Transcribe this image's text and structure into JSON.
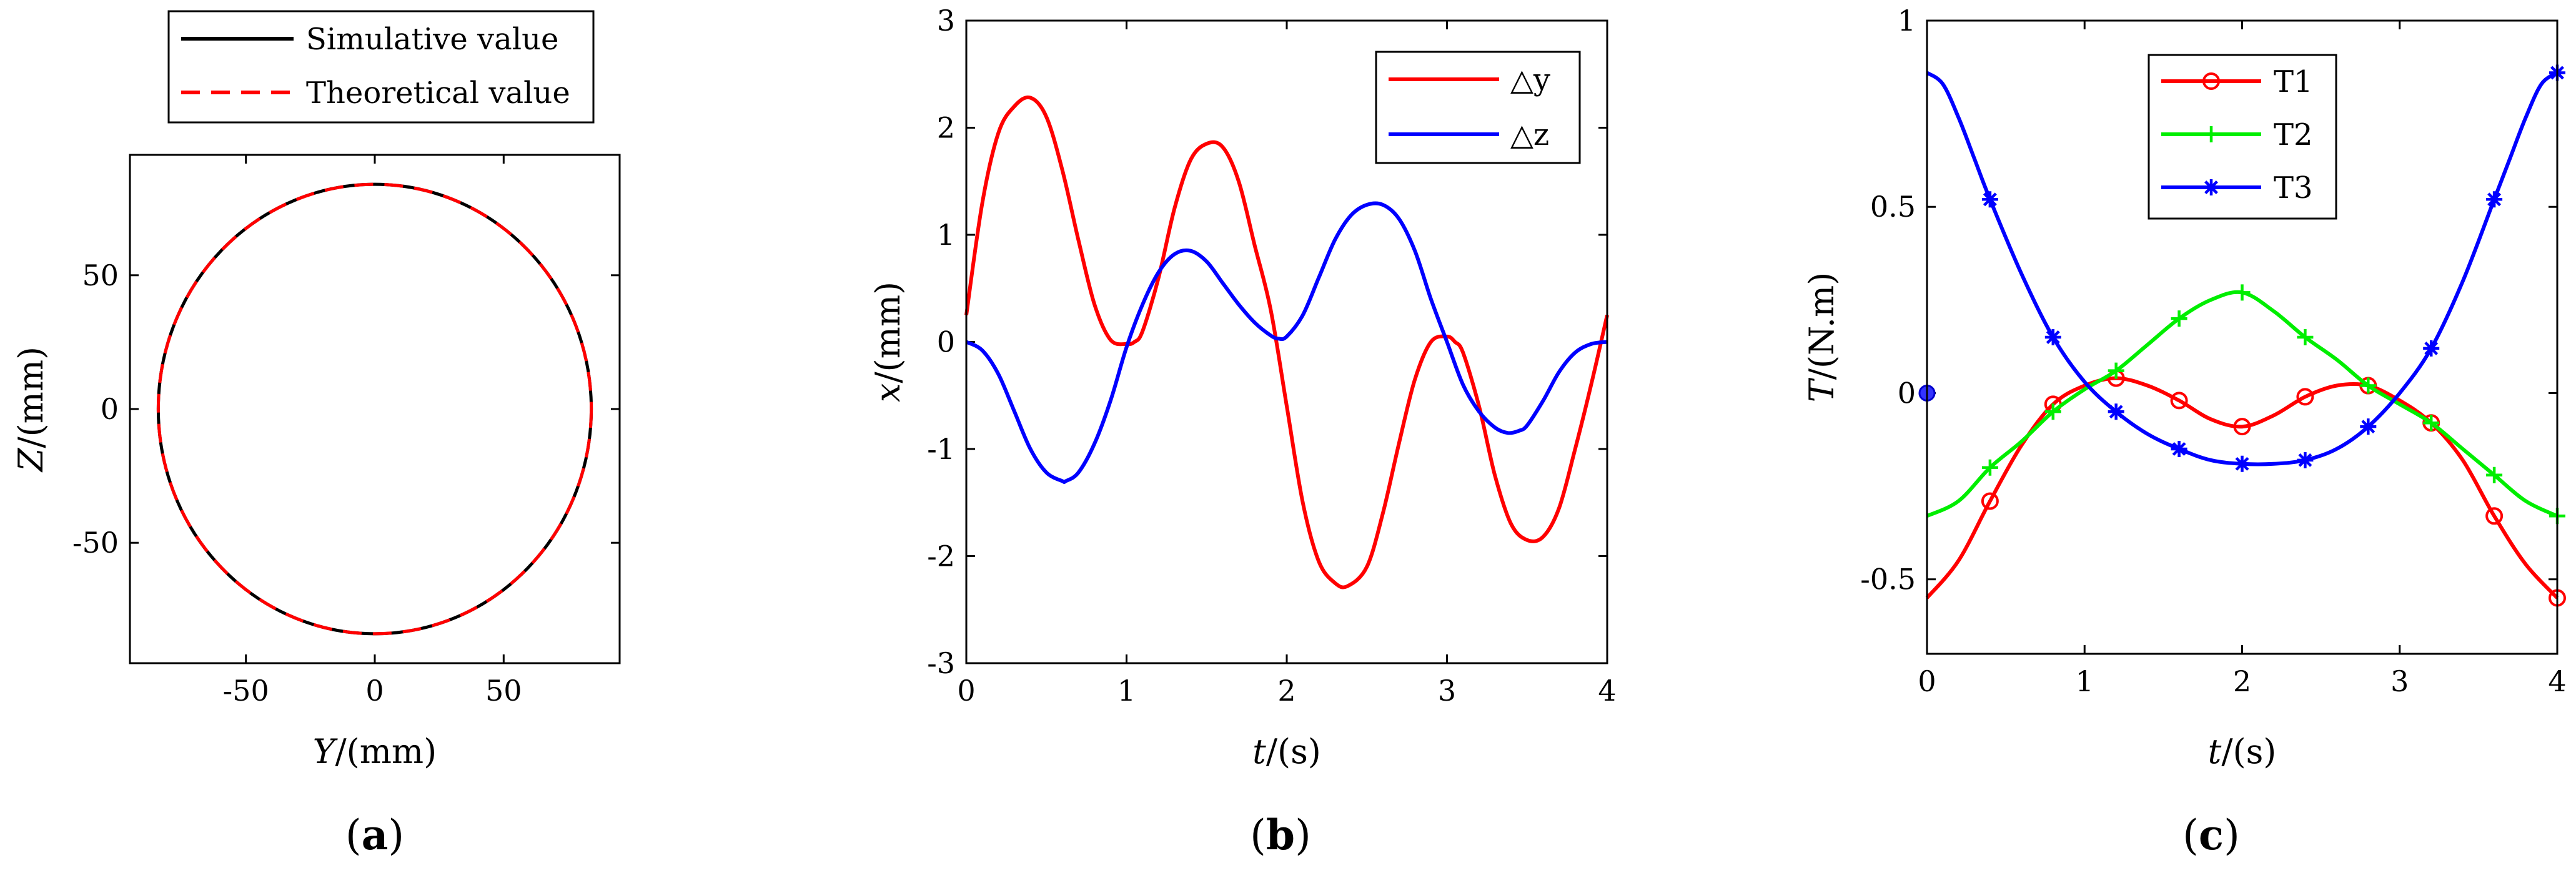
{
  "chart_data": [
    {
      "type": "line",
      "panel_label": "a",
      "xlabel_italic": "Y",
      "xlabel_rest": "/(mm)",
      "ylabel_italic": "Z",
      "ylabel_rest": "/(mm)",
      "xlim": [
        -95,
        95
      ],
      "ylim": [
        -95,
        95
      ],
      "xticks": [
        -50,
        0,
        50
      ],
      "yticks": [
        -50,
        0,
        50
      ],
      "legend_position": "top",
      "series": [
        {
          "name": "Simulative value",
          "color": "#000000",
          "dash": "solid",
          "shape": "circle",
          "radius": 84
        },
        {
          "name": "Theoretical value",
          "color": "#ff0000",
          "dash": "dashed",
          "shape": "circle",
          "radius": 84
        }
      ]
    },
    {
      "type": "line",
      "panel_label": "b",
      "xlabel_italic": "t",
      "xlabel_rest": "/(s)",
      "ylabel_italic": "x",
      "ylabel_rest": "/(mm)",
      "xlim": [
        0,
        4
      ],
      "ylim": [
        -3,
        3
      ],
      "xticks": [
        0,
        1,
        2,
        3,
        4
      ],
      "yticks": [
        -3,
        -2,
        -1,
        0,
        1,
        2,
        3
      ],
      "legend_position": "top-right",
      "series": [
        {
          "name": "△y",
          "color": "#ff0000",
          "x": [
            0,
            0.1,
            0.2,
            0.3,
            0.4,
            0.5,
            0.6,
            0.7,
            0.8,
            0.9,
            1.0,
            1.05,
            1.1,
            1.2,
            1.3,
            1.4,
            1.5,
            1.6,
            1.7,
            1.8,
            1.9,
            2.0,
            2.1,
            2.2,
            2.3,
            2.38,
            2.5,
            2.6,
            2.7,
            2.8,
            2.9,
            3.0,
            3.05,
            3.1,
            3.2,
            3.3,
            3.4,
            3.5,
            3.6,
            3.7,
            3.8,
            3.9,
            4.0
          ],
          "y": [
            0.25,
            1.3,
            1.95,
            2.2,
            2.28,
            2.1,
            1.6,
            0.95,
            0.35,
            0.02,
            -0.02,
            0.0,
            0.1,
            0.6,
            1.25,
            1.7,
            1.85,
            1.82,
            1.5,
            0.9,
            0.3,
            -0.6,
            -1.5,
            -2.05,
            -2.25,
            -2.28,
            -2.1,
            -1.6,
            -0.95,
            -0.35,
            0.0,
            0.05,
            0.0,
            -0.1,
            -0.6,
            -1.25,
            -1.7,
            -1.85,
            -1.82,
            -1.55,
            -1.0,
            -0.4,
            0.25
          ]
        },
        {
          "name": "△z",
          "color": "#0000ff",
          "x": [
            0,
            0.1,
            0.2,
            0.3,
            0.4,
            0.5,
            0.6,
            0.62,
            0.7,
            0.8,
            0.9,
            1.0,
            1.1,
            1.2,
            1.3,
            1.4,
            1.5,
            1.6,
            1.7,
            1.8,
            1.9,
            1.95,
            2.0,
            2.1,
            2.2,
            2.3,
            2.4,
            2.5,
            2.6,
            2.7,
            2.8,
            2.9,
            3.0,
            3.1,
            3.2,
            3.3,
            3.38,
            3.45,
            3.5,
            3.6,
            3.7,
            3.8,
            3.9,
            4.0
          ],
          "y": [
            0.0,
            -0.08,
            -0.3,
            -0.65,
            -1.0,
            -1.22,
            -1.3,
            -1.3,
            -1.22,
            -0.95,
            -0.55,
            -0.05,
            0.35,
            0.65,
            0.82,
            0.85,
            0.75,
            0.55,
            0.35,
            0.18,
            0.06,
            0.03,
            0.05,
            0.25,
            0.6,
            0.95,
            1.18,
            1.28,
            1.28,
            1.15,
            0.85,
            0.4,
            0.0,
            -0.4,
            -0.65,
            -0.8,
            -0.85,
            -0.83,
            -0.78,
            -0.55,
            -0.28,
            -0.1,
            -0.02,
            0.0
          ]
        }
      ]
    },
    {
      "type": "line",
      "panel_label": "c",
      "xlabel_italic": "t",
      "xlabel_rest": "/(s)",
      "ylabel_italic": "T",
      "ylabel_rest": "/(N.m)",
      "xlim": [
        0,
        4
      ],
      "ylim": [
        -0.7,
        1
      ],
      "xticks": [
        0,
        1,
        2,
        3,
        4
      ],
      "yticks": [
        -0.5,
        0,
        0.5,
        1
      ],
      "legend_position": "top-center",
      "series": [
        {
          "name": "T1",
          "color": "#ff0000",
          "marker": "circle",
          "x": [
            0,
            0.2,
            0.4,
            0.6,
            0.8,
            1.0,
            1.2,
            1.4,
            1.6,
            1.8,
            2.0,
            2.2,
            2.4,
            2.6,
            2.8,
            3.0,
            3.2,
            3.4,
            3.6,
            3.8,
            4.0
          ],
          "y": [
            -0.55,
            -0.45,
            -0.29,
            -0.14,
            -0.03,
            0.02,
            0.04,
            0.02,
            -0.02,
            -0.07,
            -0.09,
            -0.06,
            -0.01,
            0.02,
            0.02,
            -0.02,
            -0.08,
            -0.18,
            -0.33,
            -0.46,
            -0.55
          ],
          "markers_x": [
            0.4,
            0.8,
            1.2,
            1.6,
            2.0,
            2.4,
            2.8,
            3.2,
            3.6,
            4.0
          ],
          "markers_y": [
            -0.29,
            -0.03,
            0.04,
            -0.02,
            -0.09,
            -0.01,
            0.02,
            -0.08,
            -0.33,
            -0.55
          ]
        },
        {
          "name": "T2",
          "color": "#00ee00",
          "marker": "plus",
          "x": [
            0,
            0.2,
            0.4,
            0.6,
            0.8,
            1.0,
            1.2,
            1.4,
            1.6,
            1.8,
            2.0,
            2.2,
            2.4,
            2.6,
            2.8,
            3.0,
            3.2,
            3.4,
            3.6,
            3.8,
            4.0
          ],
          "y": [
            -0.33,
            -0.29,
            -0.2,
            -0.13,
            -0.05,
            0.01,
            0.06,
            0.13,
            0.2,
            0.25,
            0.27,
            0.22,
            0.15,
            0.09,
            0.02,
            -0.03,
            -0.08,
            -0.15,
            -0.22,
            -0.29,
            -0.33
          ],
          "markers_x": [
            0.4,
            0.8,
            1.2,
            1.6,
            2.0,
            2.4,
            2.8,
            3.2,
            3.6,
            4.0
          ],
          "markers_y": [
            -0.2,
            -0.05,
            0.06,
            0.2,
            0.27,
            0.15,
            0.02,
            -0.08,
            -0.22,
            -0.33
          ]
        },
        {
          "name": "T3",
          "color": "#0000ff",
          "marker": "star",
          "x": [
            0,
            0.1,
            0.2,
            0.3,
            0.4,
            0.6,
            0.8,
            1.0,
            1.2,
            1.4,
            1.6,
            1.8,
            2.0,
            2.2,
            2.4,
            2.6,
            2.8,
            3.0,
            3.2,
            3.4,
            3.6,
            3.7,
            3.8,
            3.9,
            4.0
          ],
          "y": [
            0.86,
            0.83,
            0.74,
            0.63,
            0.52,
            0.32,
            0.15,
            0.03,
            -0.05,
            -0.11,
            -0.15,
            -0.18,
            -0.19,
            -0.19,
            -0.18,
            -0.15,
            -0.09,
            0.0,
            0.12,
            0.3,
            0.52,
            0.63,
            0.74,
            0.83,
            0.86
          ],
          "markers_x": [
            0.4,
            0.8,
            1.2,
            1.6,
            2.0,
            2.4,
            2.8,
            3.2,
            3.6,
            4.0
          ],
          "markers_y": [
            0.52,
            0.15,
            -0.05,
            -0.15,
            -0.19,
            -0.18,
            -0.09,
            0.12,
            0.52,
            0.86
          ]
        }
      ],
      "start_point": {
        "x": 0,
        "y": 0
      }
    }
  ]
}
